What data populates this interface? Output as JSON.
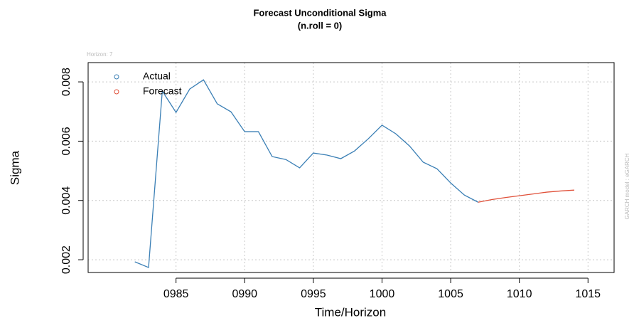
{
  "chart_data": {
    "type": "line",
    "title": "Forecast Unconditional Sigma",
    "subtitle": "(n.roll = 0)",
    "annotation": "Horizon: 7",
    "side_note": "GARCH model : eGARCH",
    "xlabel": "Time/Horizon",
    "ylabel": "Sigma",
    "x": [
      982,
      983,
      984,
      985,
      986,
      987,
      988,
      989,
      990,
      991,
      992,
      993,
      994,
      995,
      996,
      997,
      998,
      999,
      1000,
      1001,
      1002,
      1003,
      1004,
      1005,
      1006,
      1007,
      1008,
      1009,
      1010,
      1011,
      1012,
      1013,
      1014
    ],
    "series": [
      {
        "name": "Actual",
        "color": "#3a7fb5",
        "values": [
          0.00193,
          0.00174,
          0.00769,
          0.00697,
          0.00776,
          0.00807,
          0.00726,
          0.00699,
          0.00632,
          0.00632,
          0.00548,
          0.00538,
          0.0051,
          0.0056,
          0.00553,
          0.00541,
          0.00567,
          0.00608,
          0.00654,
          0.00625,
          0.00584,
          0.00529,
          0.00507,
          0.00459,
          0.00418,
          0.00394,
          null,
          null,
          null,
          null,
          null,
          null,
          null
        ]
      },
      {
        "name": "Forecast",
        "color": "#e0513a",
        "values": [
          null,
          null,
          null,
          null,
          null,
          null,
          null,
          null,
          null,
          null,
          null,
          null,
          null,
          null,
          null,
          null,
          null,
          null,
          null,
          null,
          null,
          null,
          null,
          null,
          null,
          0.00394,
          0.00403,
          0.0041,
          0.00416,
          0.00422,
          0.00428,
          0.00432,
          0.00435
        ]
      }
    ],
    "xlim": [
      978.6,
      1016.9
    ],
    "xticks": [
      {
        "value": 985,
        "label": "0985"
      },
      {
        "value": 990,
        "label": "0990"
      },
      {
        "value": 995,
        "label": "0995"
      },
      1000,
      1005,
      1010,
      1015
    ],
    "ylim": [
      0.00157,
      0.00865
    ],
    "yticks": [
      0.002,
      0.004,
      0.006,
      0.008
    ],
    "grid": true,
    "legend": "top-left"
  }
}
